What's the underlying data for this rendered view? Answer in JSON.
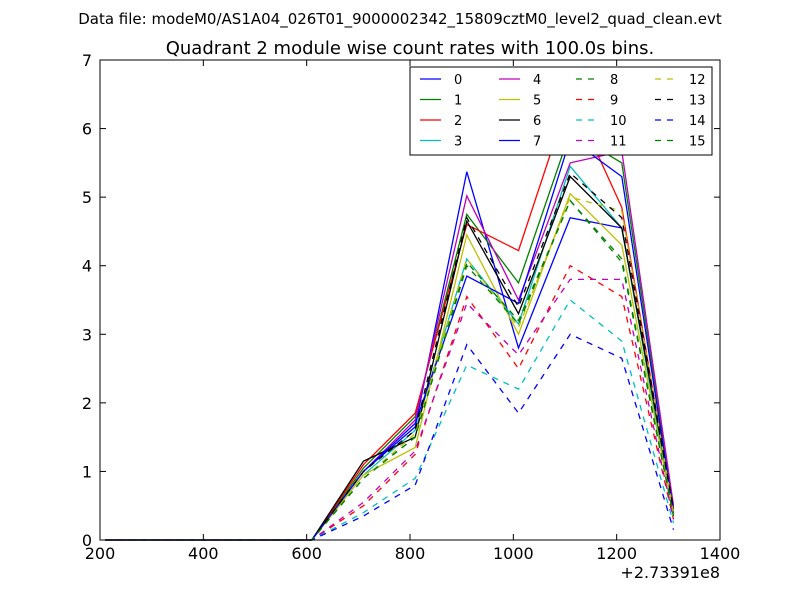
{
  "figure": {
    "suptitle": "Data file: modeM0/AS1A04_026T01_9000002342_15809cztM0_level2_quad_clean.evt"
  },
  "chart_data": {
    "type": "line",
    "title": "Quadrant 2 module wise count rates with 100.0s bins.",
    "xlabel": "",
    "ylabel": "",
    "x_offset_label": "+2.73391e8",
    "xlim": [
      200,
      1400
    ],
    "ylim": [
      0,
      7
    ],
    "xticks": [
      200,
      400,
      600,
      800,
      1000,
      1200,
      1400
    ],
    "yticks": [
      0,
      1,
      2,
      3,
      4,
      5,
      6,
      7
    ],
    "grid": false,
    "legend_position": "top-right",
    "x": [
      210,
      310,
      410,
      510,
      610,
      710,
      810,
      910,
      1010,
      1110,
      1210,
      1310
    ],
    "series": [
      {
        "name": "0",
        "color": "#0000ff",
        "dash": "solid",
        "values": [
          0,
          0,
          0,
          0,
          0,
          1.0,
          1.65,
          5.37,
          2.8,
          4.7,
          4.55,
          0.4
        ]
      },
      {
        "name": "1",
        "color": "#008000",
        "dash": "solid",
        "values": [
          0,
          0,
          0,
          0,
          0,
          1.05,
          1.8,
          4.75,
          3.75,
          5.95,
          5.5,
          0.45
        ]
      },
      {
        "name": "2",
        "color": "#ff0000",
        "dash": "solid",
        "values": [
          0,
          0,
          0,
          0,
          0,
          1.1,
          1.85,
          4.6,
          4.22,
          6.5,
          4.85,
          0.4
        ]
      },
      {
        "name": "3",
        "color": "#00bfbf",
        "dash": "solid",
        "values": [
          0,
          0,
          0,
          0,
          0,
          0.95,
          1.6,
          4.1,
          3.15,
          5.45,
          4.55,
          0.35
        ]
      },
      {
        "name": "4",
        "color": "#bf00bf",
        "dash": "solid",
        "values": [
          0,
          0,
          0,
          0,
          0,
          1.0,
          1.75,
          5.02,
          3.5,
          5.5,
          5.67,
          0.5
        ]
      },
      {
        "name": "5",
        "color": "#bfbf00",
        "dash": "solid",
        "values": [
          0,
          0,
          0,
          0,
          0,
          0.95,
          1.35,
          4.45,
          3.0,
          5.05,
          4.3,
          0.35
        ]
      },
      {
        "name": "6",
        "color": "#000000",
        "dash": "solid",
        "values": [
          0,
          0,
          0,
          0,
          0,
          1.15,
          1.5,
          4.65,
          3.3,
          5.3,
          4.55,
          0.45
        ]
      },
      {
        "name": "7",
        "color": "#0000ff",
        "dash": "solid",
        "values": [
          0,
          0,
          0,
          0,
          0,
          1.0,
          1.7,
          3.85,
          3.45,
          5.85,
          5.3,
          0.4
        ]
      },
      {
        "name": "8",
        "color": "#008000",
        "dash": "dashed",
        "values": [
          0,
          0,
          0,
          0,
          0,
          0.9,
          1.5,
          4.05,
          3.2,
          4.95,
          4.1,
          0.35
        ]
      },
      {
        "name": "9",
        "color": "#ff0000",
        "dash": "dashed",
        "values": [
          0,
          0,
          0,
          0,
          0,
          0.5,
          1.25,
          3.55,
          2.5,
          4.0,
          3.55,
          0.3
        ]
      },
      {
        "name": "10",
        "color": "#00bfbf",
        "dash": "dashed",
        "values": [
          0,
          0,
          0,
          0,
          0,
          0.4,
          0.9,
          2.55,
          2.2,
          3.5,
          2.9,
          0.25
        ]
      },
      {
        "name": "11",
        "color": "#bf00bf",
        "dash": "dashed",
        "values": [
          0,
          0,
          0,
          0,
          0,
          0.55,
          1.3,
          3.45,
          2.7,
          3.8,
          3.8,
          0.3
        ]
      },
      {
        "name": "12",
        "color": "#bfbf00",
        "dash": "dashed",
        "values": [
          0,
          0,
          0,
          0,
          0,
          0.9,
          1.55,
          4.1,
          3.1,
          5.0,
          4.8,
          0.4
        ]
      },
      {
        "name": "13",
        "color": "#000000",
        "dash": "dashed",
        "values": [
          0,
          0,
          0,
          0,
          0,
          1.0,
          1.6,
          4.7,
          3.4,
          5.35,
          4.7,
          0.45
        ]
      },
      {
        "name": "14",
        "color": "#0000ff",
        "dash": "dashed",
        "values": [
          0,
          0,
          0,
          0,
          0,
          0.35,
          0.8,
          2.85,
          1.85,
          3.0,
          2.65,
          0.15
        ]
      },
      {
        "name": "15",
        "color": "#008000",
        "dash": "dashed",
        "values": [
          0,
          0,
          0,
          0,
          0,
          0.9,
          1.5,
          4.0,
          3.15,
          4.95,
          4.05,
          0.35
        ]
      }
    ]
  }
}
